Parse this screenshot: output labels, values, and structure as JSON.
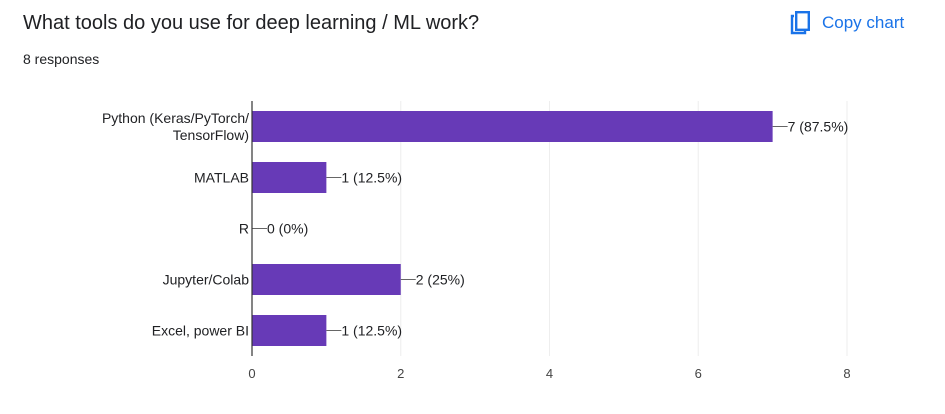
{
  "question": {
    "title": "What tools do you use for deep learning / ML work?",
    "responses": "8 responses"
  },
  "actions": {
    "copy_label": "Copy chart",
    "copy_icon": "copy-icon"
  },
  "colors": {
    "bar": "#673ab7",
    "accent": "#1a73e8",
    "text": "#202124",
    "axis": "#333333",
    "grid": "#eeeeee"
  },
  "chart_data": {
    "type": "bar",
    "orientation": "horizontal",
    "categories": [
      [
        "Python (Keras/PyTorch/",
        "TensorFlow)"
      ],
      [
        "MATLAB"
      ],
      [
        "R"
      ],
      [
        "Jupyter/Colab"
      ],
      [
        "Excel, power BI"
      ]
    ],
    "values": [
      7,
      1,
      0,
      2,
      1
    ],
    "data_labels": [
      "7 (87.5%)",
      "1 (12.5%)",
      "0 (0%)",
      "2 (25%)",
      "1 (12.5%)"
    ],
    "xlim": [
      0,
      8
    ],
    "xticks": [
      0,
      2,
      4,
      6,
      8
    ],
    "grid": true,
    "title": "",
    "xlabel": "",
    "ylabel": ""
  }
}
